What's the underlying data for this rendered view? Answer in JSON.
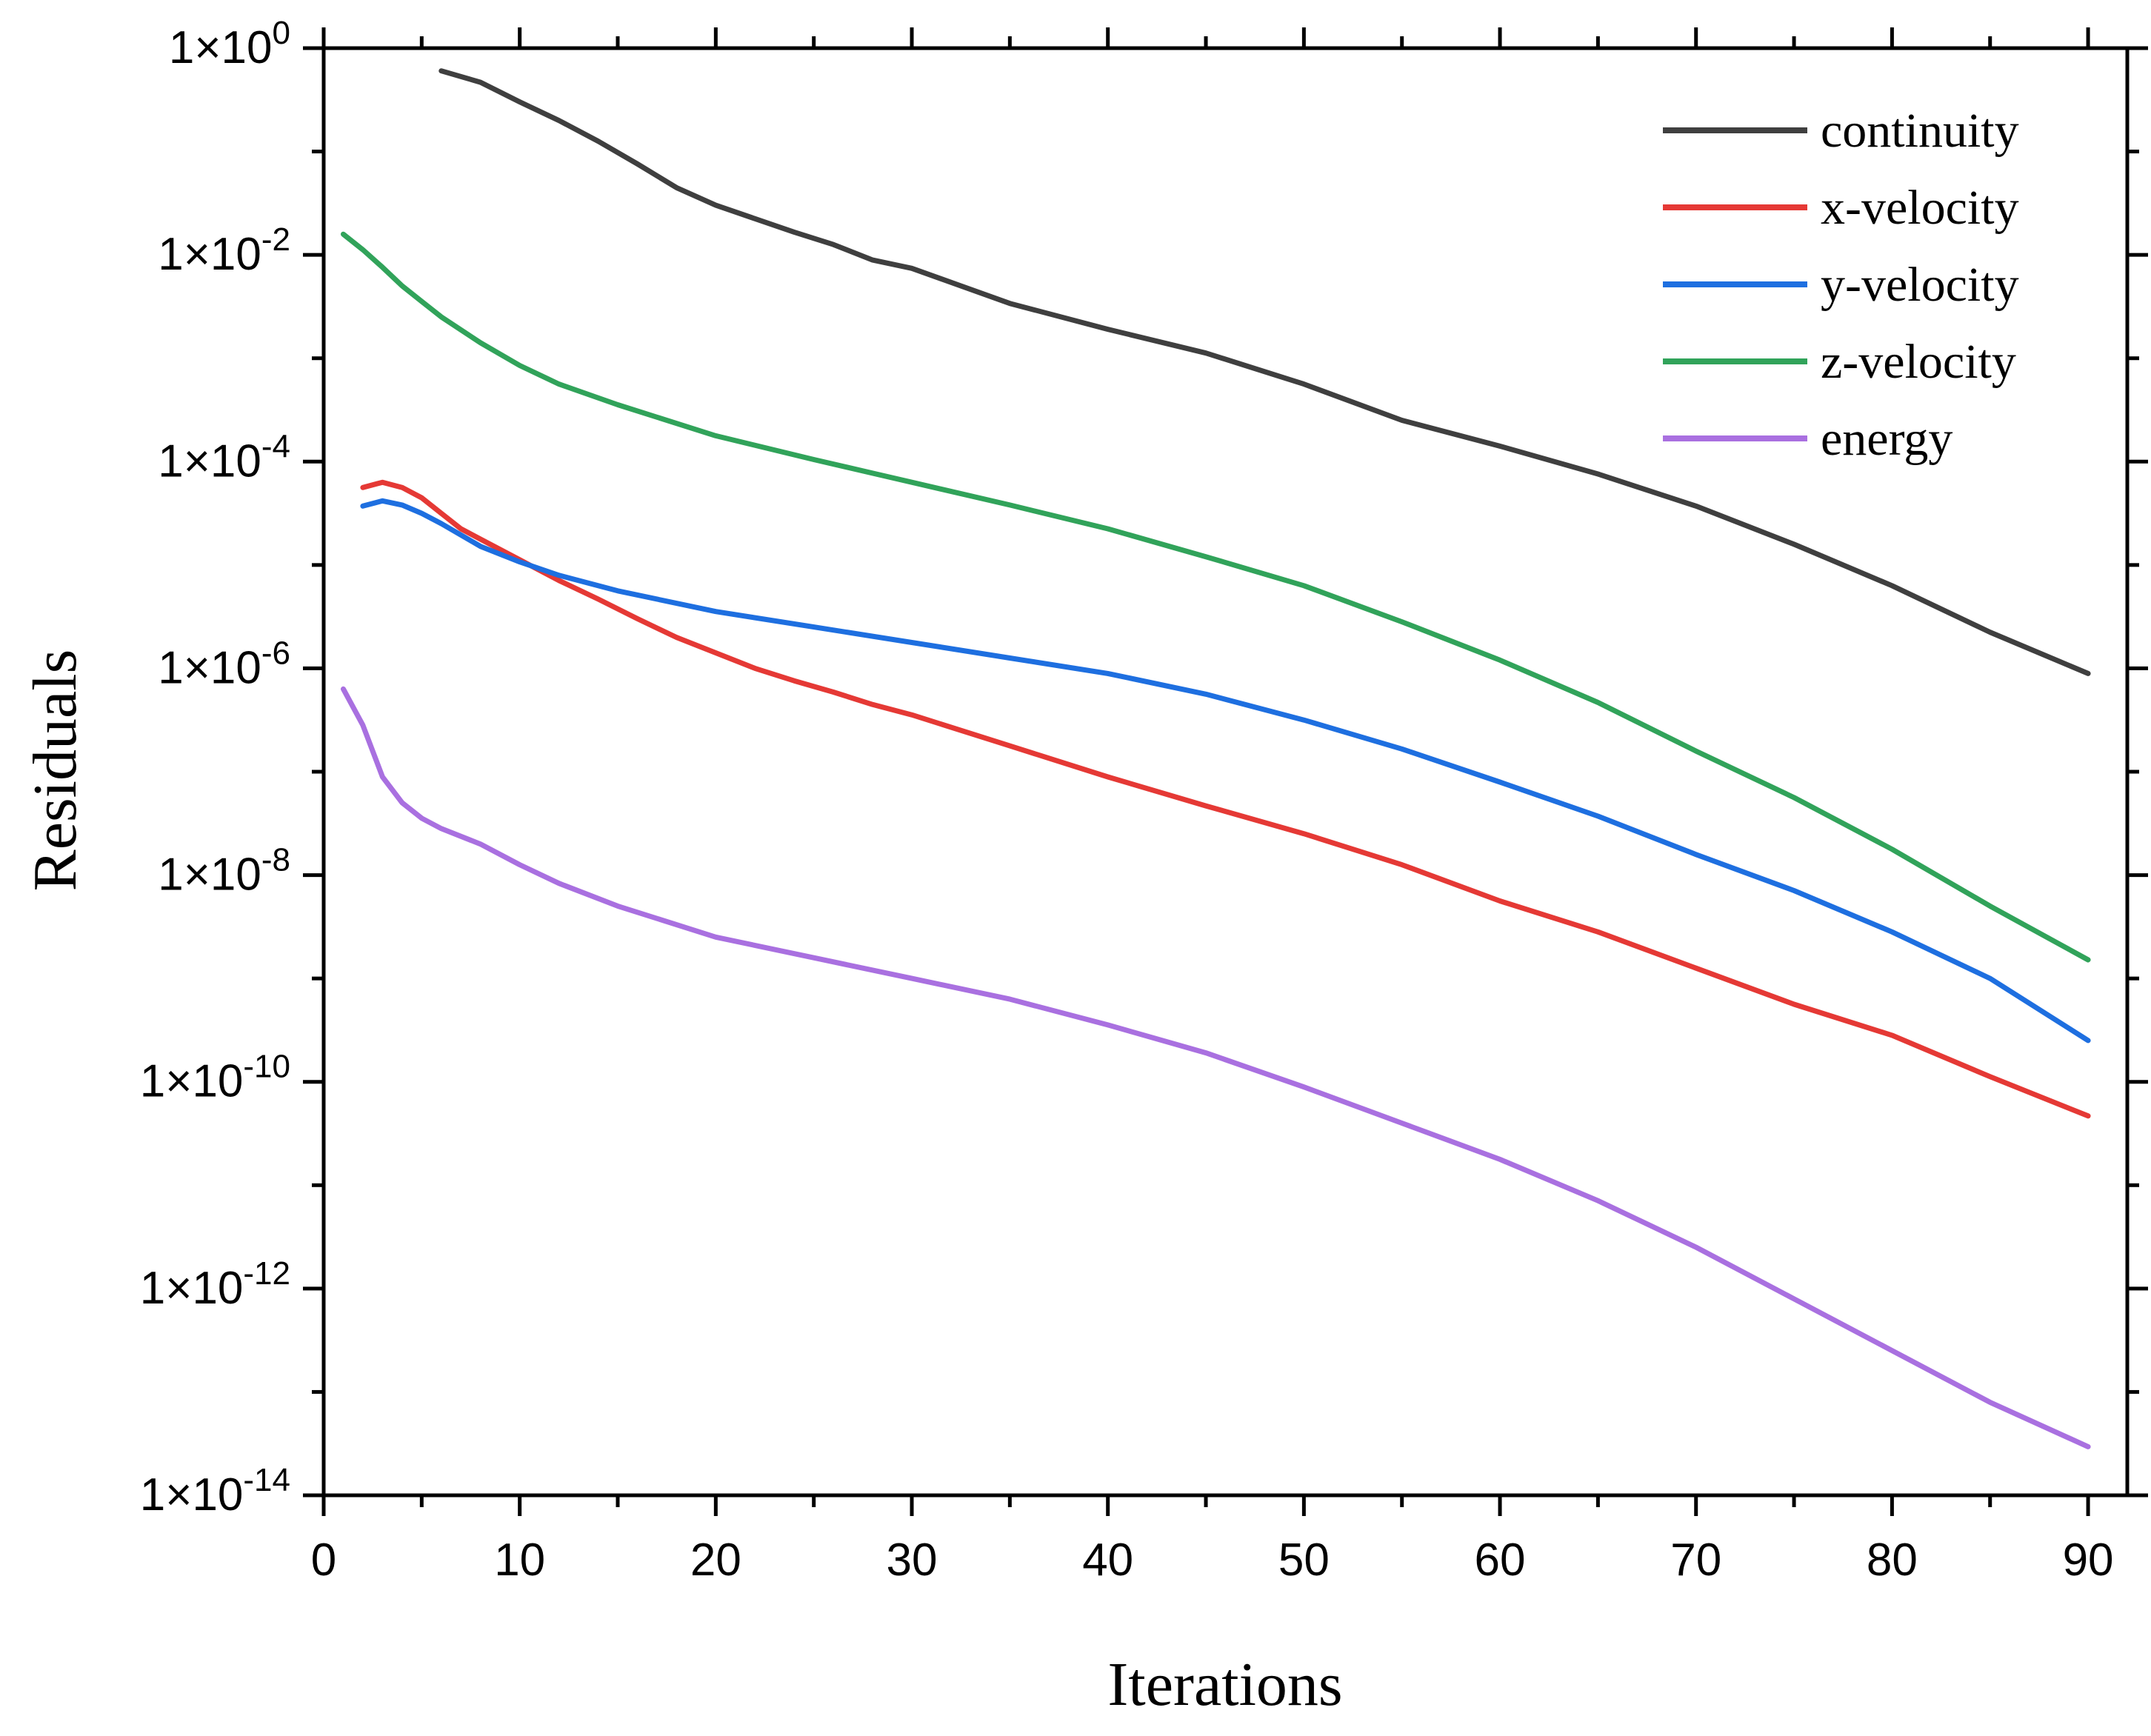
{
  "chart_data": {
    "type": "line",
    "title": "",
    "xlabel": "Iterations",
    "ylabel": "Residuals",
    "xlim": [
      0,
      92
    ],
    "ylim_log10": [
      -14,
      0
    ],
    "y_scale": "log",
    "legend_position": "top-right",
    "x_ticks": [
      "0",
      "10",
      "20",
      "30",
      "40",
      "50",
      "60",
      "70",
      "80",
      "90"
    ],
    "y_ticks": [
      {
        "base": "1×10",
        "exp": "0"
      },
      {
        "base": "1×10",
        "exp": "-2"
      },
      {
        "base": "1×10",
        "exp": "-4"
      },
      {
        "base": "1×10",
        "exp": "-6"
      },
      {
        "base": "1×10",
        "exp": "-8"
      },
      {
        "base": "1×10",
        "exp": "-10"
      },
      {
        "base": "1×10",
        "exp": "-12"
      },
      {
        "base": "1×10",
        "exp": "-14"
      }
    ],
    "series": [
      {
        "name": "continuity",
        "color": "#3f3f3f",
        "x": [
          6,
          8,
          10,
          12,
          14,
          16,
          18,
          20,
          22,
          24,
          26,
          28,
          30,
          35,
          40,
          45,
          50,
          55,
          60,
          65,
          70,
          75,
          80,
          85,
          90
        ],
        "log10_y": [
          -0.22,
          -0.33,
          -0.52,
          -0.7,
          -0.9,
          -1.12,
          -1.35,
          -1.52,
          -1.65,
          -1.78,
          -1.9,
          -2.05,
          -2.13,
          -2.47,
          -2.72,
          -2.95,
          -3.25,
          -3.6,
          -3.85,
          -4.12,
          -4.43,
          -4.8,
          -5.2,
          -5.65,
          -6.05
        ]
      },
      {
        "name": "x-velocity",
        "color": "#e53935",
        "x": [
          2,
          3,
          4,
          5,
          6,
          7,
          8,
          10,
          12,
          14,
          16,
          18,
          20,
          22,
          24,
          26,
          28,
          30,
          35,
          40,
          45,
          50,
          55,
          60,
          65,
          70,
          75,
          80,
          85,
          90
        ],
        "log10_y": [
          -4.25,
          -4.2,
          -4.25,
          -4.35,
          -4.5,
          -4.65,
          -4.75,
          -4.95,
          -5.15,
          -5.33,
          -5.52,
          -5.7,
          -5.85,
          -6.0,
          -6.12,
          -6.23,
          -6.35,
          -6.45,
          -6.75,
          -7.05,
          -7.33,
          -7.6,
          -7.9,
          -8.25,
          -8.55,
          -8.9,
          -9.25,
          -9.55,
          -9.95,
          -10.33
        ]
      },
      {
        "name": "y-velocity",
        "color": "#1e6fe0",
        "x": [
          2,
          3,
          4,
          5,
          6,
          8,
          10,
          12,
          15,
          20,
          25,
          30,
          35,
          40,
          45,
          50,
          55,
          60,
          65,
          70,
          75,
          80,
          85,
          90
        ],
        "log10_y": [
          -4.43,
          -4.38,
          -4.42,
          -4.5,
          -4.6,
          -4.82,
          -4.97,
          -5.1,
          -5.25,
          -5.45,
          -5.6,
          -5.75,
          -5.9,
          -6.05,
          -6.25,
          -6.5,
          -6.78,
          -7.1,
          -7.43,
          -7.8,
          -8.15,
          -8.55,
          -9.0,
          -9.6
        ]
      },
      {
        "name": "z-velocity",
        "color": "#31a35a",
        "x": [
          1,
          2,
          3,
          4,
          5,
          6,
          8,
          10,
          12,
          15,
          20,
          25,
          30,
          35,
          40,
          45,
          50,
          55,
          60,
          65,
          70,
          75,
          80,
          85,
          90
        ],
        "log10_y": [
          -1.8,
          -1.95,
          -2.12,
          -2.3,
          -2.45,
          -2.6,
          -2.85,
          -3.07,
          -3.25,
          -3.45,
          -3.75,
          -3.98,
          -4.2,
          -4.42,
          -4.65,
          -4.92,
          -5.2,
          -5.55,
          -5.92,
          -6.33,
          -6.8,
          -7.25,
          -7.75,
          -8.3,
          -8.82
        ]
      },
      {
        "name": "energy",
        "color": "#a970e0",
        "x": [
          1,
          2,
          3,
          4,
          5,
          6,
          8,
          10,
          12,
          15,
          20,
          25,
          30,
          35,
          40,
          45,
          50,
          55,
          60,
          65,
          70,
          75,
          80,
          85,
          90
        ],
        "log10_y": [
          -6.2,
          -6.55,
          -7.05,
          -7.3,
          -7.45,
          -7.55,
          -7.7,
          -7.9,
          -8.08,
          -8.3,
          -8.6,
          -8.8,
          -9.0,
          -9.2,
          -9.45,
          -9.72,
          -10.05,
          -10.4,
          -10.75,
          -11.15,
          -11.6,
          -12.1,
          -12.6,
          -13.1,
          -13.53
        ]
      }
    ]
  }
}
